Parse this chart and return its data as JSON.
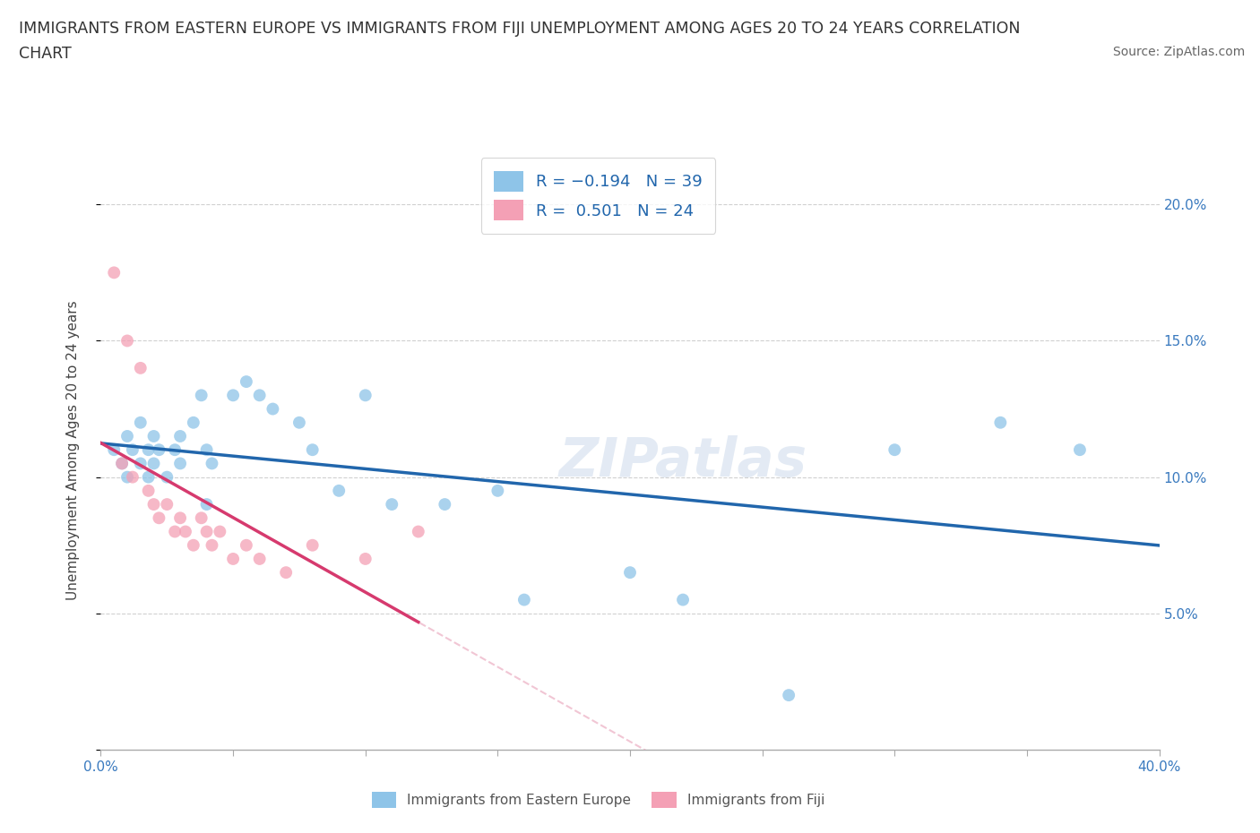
{
  "title_line1": "IMMIGRANTS FROM EASTERN EUROPE VS IMMIGRANTS FROM FIJI UNEMPLOYMENT AMONG AGES 20 TO 24 YEARS CORRELATION",
  "title_line2": "CHART",
  "source": "Source: ZipAtlas.com",
  "ylabel": "Unemployment Among Ages 20 to 24 years",
  "xlim": [
    0.0,
    0.4
  ],
  "ylim": [
    0.0,
    0.22
  ],
  "xticks": [
    0.0,
    0.05,
    0.1,
    0.15,
    0.2,
    0.25,
    0.3,
    0.35,
    0.4
  ],
  "yticks": [
    0.0,
    0.05,
    0.1,
    0.15,
    0.2
  ],
  "blue_color": "#8ec4e8",
  "pink_color": "#f4a0b5",
  "trend_blue": "#2166ac",
  "trend_pink": "#d63a6e",
  "trend_pink_dash": "#e8a0b8",
  "watermark": "ZIPatlas",
  "eastern_europe_x": [
    0.005,
    0.008,
    0.01,
    0.01,
    0.012,
    0.015,
    0.015,
    0.018,
    0.018,
    0.02,
    0.02,
    0.022,
    0.025,
    0.028,
    0.03,
    0.03,
    0.035,
    0.038,
    0.04,
    0.04,
    0.042,
    0.05,
    0.055,
    0.06,
    0.065,
    0.075,
    0.08,
    0.09,
    0.1,
    0.11,
    0.13,
    0.15,
    0.16,
    0.2,
    0.22,
    0.26,
    0.3,
    0.34,
    0.37
  ],
  "eastern_europe_y": [
    0.11,
    0.105,
    0.115,
    0.1,
    0.11,
    0.105,
    0.12,
    0.1,
    0.11,
    0.105,
    0.115,
    0.11,
    0.1,
    0.11,
    0.105,
    0.115,
    0.12,
    0.13,
    0.09,
    0.11,
    0.105,
    0.13,
    0.135,
    0.13,
    0.125,
    0.12,
    0.11,
    0.095,
    0.13,
    0.09,
    0.09,
    0.095,
    0.055,
    0.065,
    0.055,
    0.02,
    0.11,
    0.12,
    0.11
  ],
  "fiji_x": [
    0.005,
    0.008,
    0.01,
    0.012,
    0.015,
    0.018,
    0.02,
    0.022,
    0.025,
    0.028,
    0.03,
    0.032,
    0.035,
    0.038,
    0.04,
    0.042,
    0.045,
    0.05,
    0.055,
    0.06,
    0.07,
    0.08,
    0.1,
    0.12
  ],
  "fiji_y": [
    0.175,
    0.105,
    0.15,
    0.1,
    0.14,
    0.095,
    0.09,
    0.085,
    0.09,
    0.08,
    0.085,
    0.08,
    0.075,
    0.085,
    0.08,
    0.075,
    0.08,
    0.07,
    0.075,
    0.07,
    0.065,
    0.075,
    0.07,
    0.08
  ]
}
